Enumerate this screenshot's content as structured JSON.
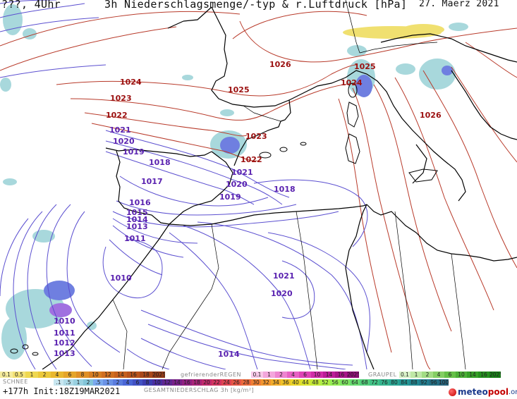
{
  "header": {
    "left": "???, 4Uhr",
    "title": "3h Niederschlagsmenge/-typ & r.Luftdruck [hPa]",
    "date": "27. Maerz 2021"
  },
  "isobars_high": [
    {
      "label": "1026",
      "kind": "high"
    },
    {
      "label": "1025",
      "kind": "high"
    },
    {
      "label": "1024",
      "kind": "high"
    },
    {
      "label": "1023",
      "kind": "high"
    },
    {
      "label": "1022",
      "kind": "high"
    },
    {
      "label": "1025",
      "kind": "high"
    },
    {
      "label": "1024",
      "kind": "high"
    },
    {
      "label": "1026",
      "kind": "high"
    },
    {
      "label": "1023",
      "kind": "high"
    },
    {
      "label": "1022",
      "kind": "high"
    }
  ],
  "isobars_low": [
    "1021",
    "1020",
    "1019",
    "1018",
    "1017",
    "1016",
    "1015",
    "1014",
    "1013",
    "1011",
    "1010",
    "1021",
    "1020",
    "1019",
    "1018",
    "1021",
    "1020",
    "1010",
    "1011",
    "1012",
    "1013",
    "1014"
  ],
  "legend": {
    "schnee": {
      "name": "SCHNEE",
      "values": [
        "0.1",
        "0.5",
        "1",
        "2",
        "4",
        "6",
        "8",
        "10",
        "12",
        "14",
        "16",
        "18",
        "2025+"
      ]
    },
    "regen": {
      "name": "gefrierenderREGEN",
      "values": [
        "0.1",
        "1",
        "2",
        "4",
        "6",
        "10",
        "14",
        "16",
        "2025+"
      ]
    },
    "graupel": {
      "name": "GRAUPEL",
      "values": [
        "0.1",
        "1",
        "2",
        "4",
        "6",
        "10",
        "14",
        "16",
        "2025+"
      ]
    },
    "total": {
      "name": "GESAMTNIEDERSCHLAG 3h [kg/m²]",
      "values": [
        ".1",
        ".5",
        "1",
        "2",
        ".5",
        "1",
        "2",
        "4",
        "6",
        "8",
        "10",
        "12",
        "14",
        "16",
        "18",
        "20",
        "22",
        "24",
        "26",
        "28",
        "30",
        "32",
        "34",
        "36",
        "40",
        "44",
        "48",
        "52",
        "56",
        "60",
        "64",
        "68",
        "72",
        "76",
        "80",
        "84",
        "88",
        "92",
        "96",
        "100"
      ]
    }
  },
  "footer": {
    "run": "+177h  Init:18Z19MAR2021",
    "logo_meteo": "meteo",
    "logo_pool": "pool",
    "logo_org": ".org"
  },
  "colors": {
    "isobar_high": "#b83a2a",
    "isobar_low": "#5b4fd0",
    "coast": "#000000",
    "rain_light": "#a8d8dc",
    "rain_blue": "#6f7fe0",
    "snow_yellow": "#f0e070",
    "precip_purple": "#a070e0"
  }
}
